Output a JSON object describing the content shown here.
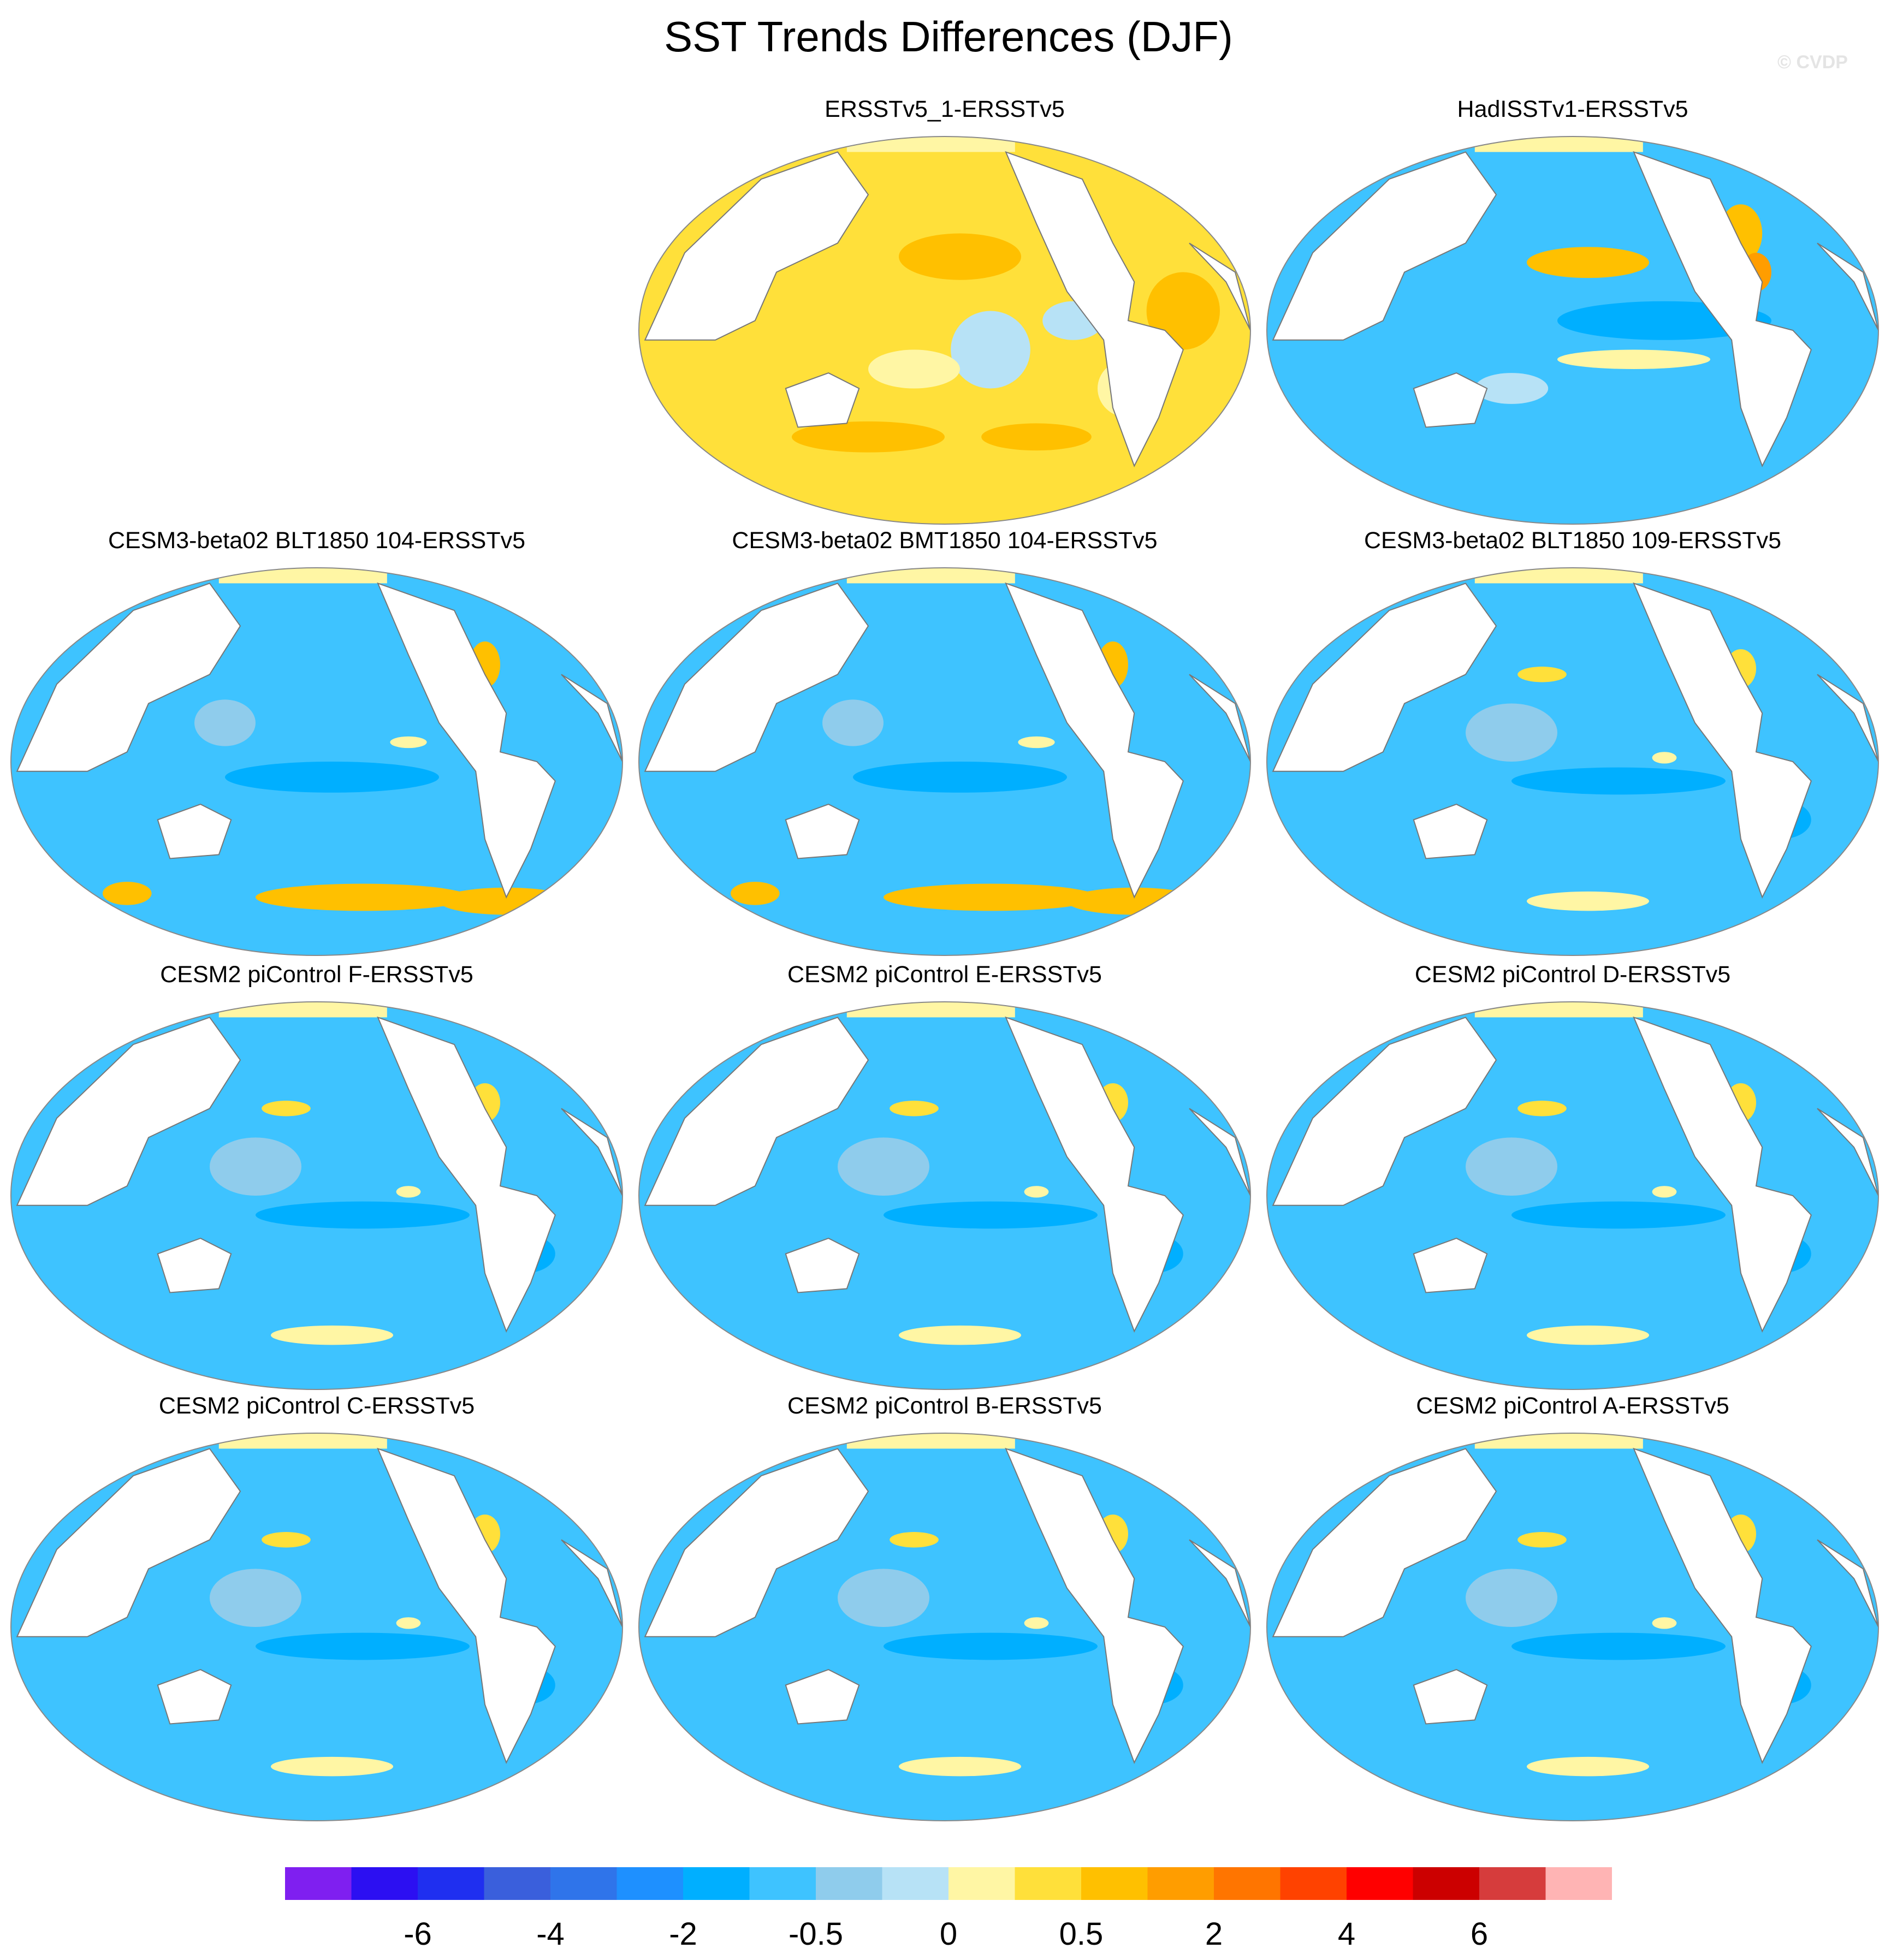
{
  "title": "SST Trends Differences (DJF)",
  "credit": "© CVDP",
  "panels": [
    {
      "title": "ERSSTv5_1-ERSSTv5",
      "pattern": "warm"
    },
    {
      "title": "HadISSTv1-ERSSTv5",
      "pattern": "mixed"
    },
    {
      "title": "CESM3-beta02 BLT1850 104-ERSSTv5",
      "pattern": "cool-south-warm"
    },
    {
      "title": "CESM3-beta02 BMT1850 104-ERSSTv5",
      "pattern": "cool-south-warm"
    },
    {
      "title": "CESM3-beta02 BLT1850 109-ERSSTv5",
      "pattern": "cool"
    },
    {
      "title": "CESM2 piControl F-ERSSTv5",
      "pattern": "cool"
    },
    {
      "title": "CESM2 piControl E-ERSSTv5",
      "pattern": "cool"
    },
    {
      "title": "CESM2 piControl D-ERSSTv5",
      "pattern": "cool"
    },
    {
      "title": "CESM2 piControl C-ERSSTv5",
      "pattern": "cool"
    },
    {
      "title": "CESM2 piControl B-ERSSTv5",
      "pattern": "cool"
    },
    {
      "title": "CESM2 piControl A-ERSSTv5",
      "pattern": "cool"
    }
  ],
  "chart_data": {
    "type": "heatmap",
    "title": "SST Trends Differences (DJF)",
    "projection": "Robinson (Pacific-centered)",
    "colorbar": {
      "colors": [
        "#7f1ff0",
        "#2c0ff2",
        "#1f2ff0",
        "#3a5fdc",
        "#2f74ea",
        "#1e90ff",
        "#00afff",
        "#3ec3ff",
        "#8fccec",
        "#b7e2f6",
        "#fff6a4",
        "#ffe03a",
        "#ffc000",
        "#ff9d00",
        "#ff7500",
        "#ff4200",
        "#ff0000",
        "#cc0000",
        "#d63c3c",
        "#ffb4b4"
      ],
      "tick_labels": [
        "-6",
        "-4",
        "-2",
        "-0.5",
        "0",
        "0.5",
        "2",
        "4",
        "6"
      ],
      "tick_after_box": [
        2,
        4,
        6,
        8,
        10,
        12,
        14,
        16,
        18
      ]
    }
  }
}
